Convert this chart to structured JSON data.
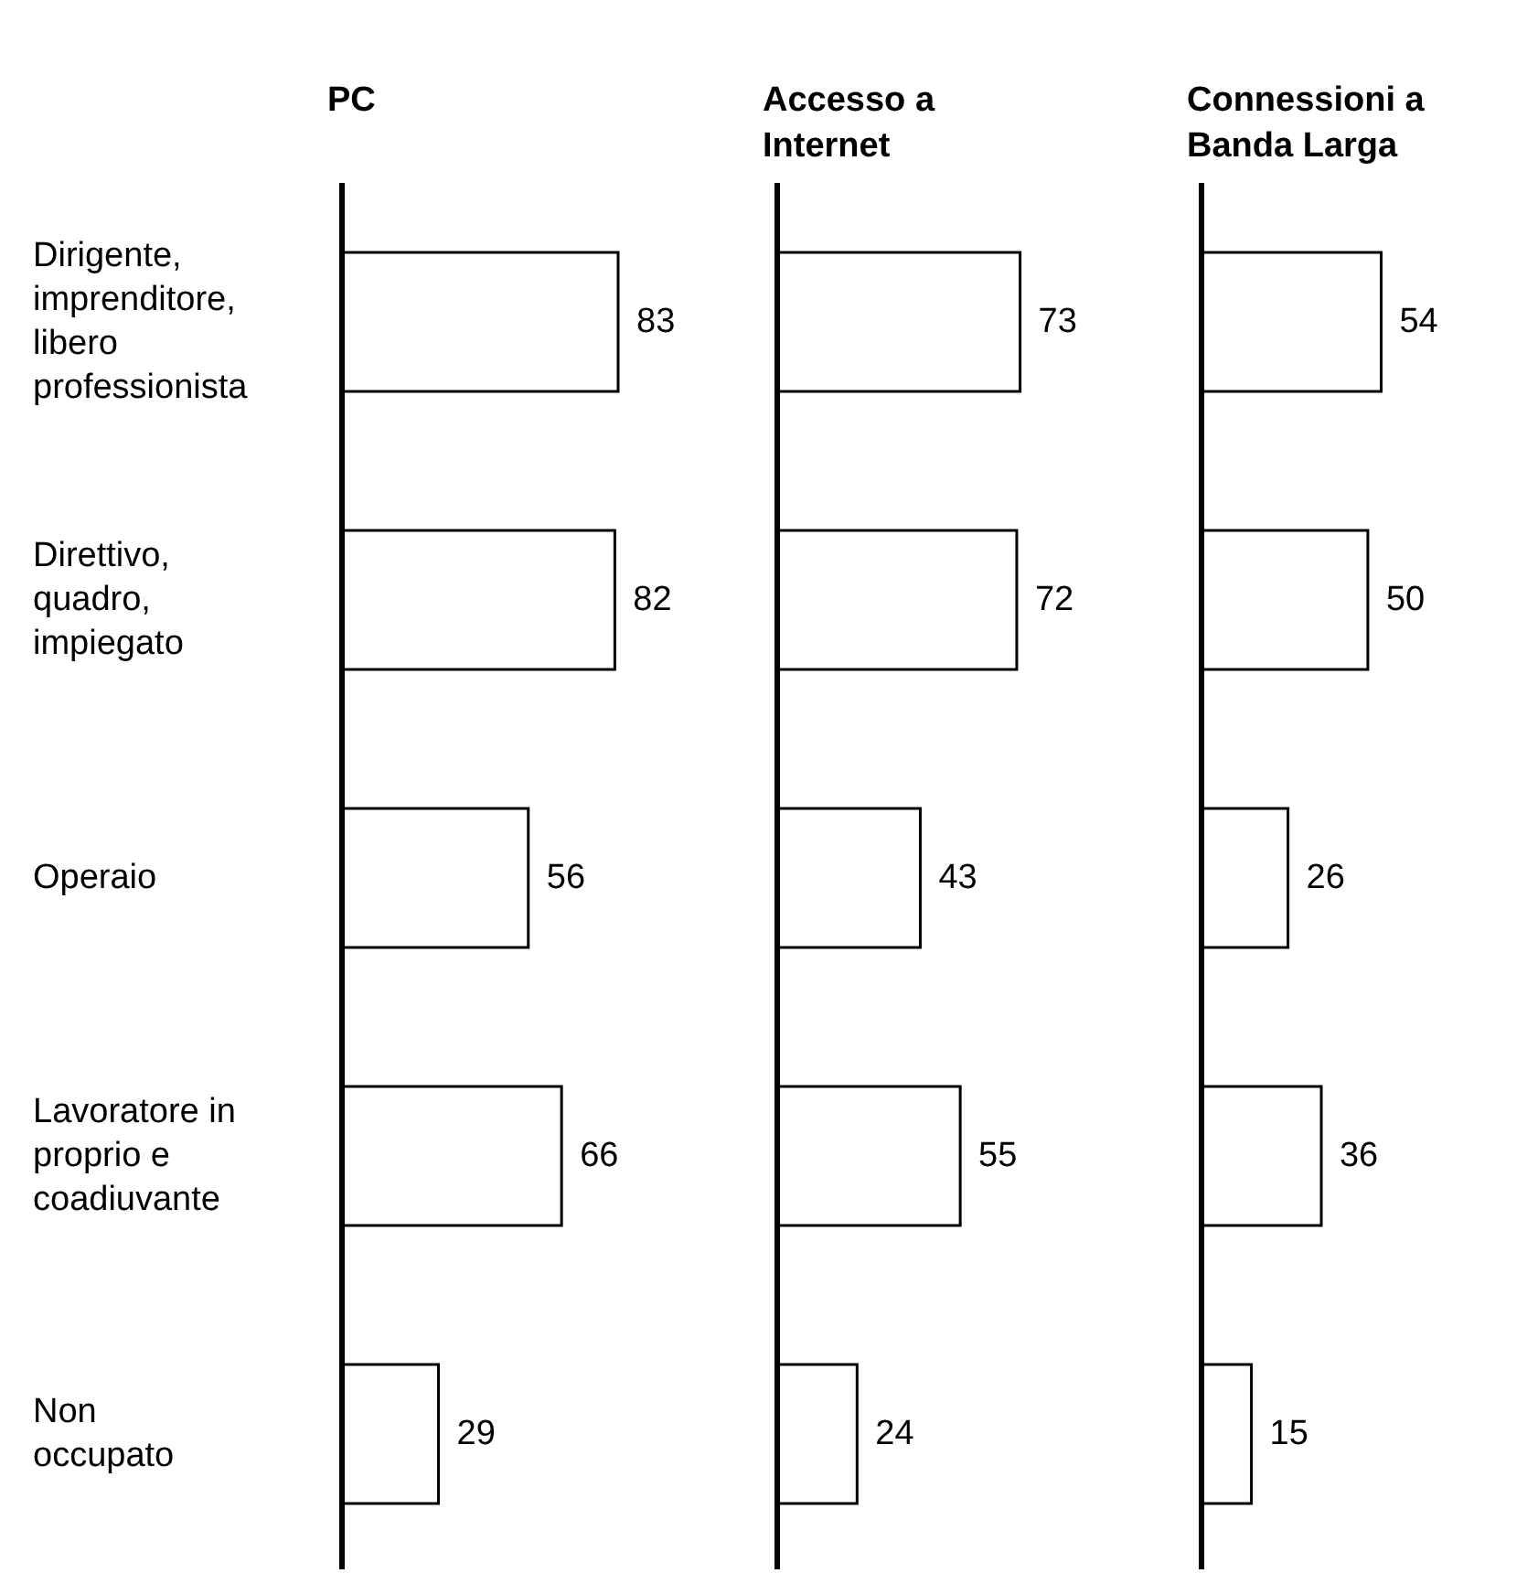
{
  "chart_data": [
    {
      "type": "bar",
      "orientation": "horizontal",
      "title": "PC",
      "categories": [
        "Dirigente,\nimprenditore,\nlibero\nprofessionista",
        "Direttivo,\nquadro,\nimpiegato",
        "Operaio",
        "Lavoratore in\nproprio e\ncoadiuvante",
        "Non\noccupato"
      ],
      "values": [
        83,
        82,
        56,
        66,
        29
      ],
      "color": "#ffffff",
      "data_labels": true,
      "tick_labels": "y"
    },
    {
      "type": "bar",
      "orientation": "horizontal",
      "title": "Accesso a\nInternet",
      "values": [
        73,
        72,
        43,
        55,
        24
      ],
      "color": "#ffffff",
      "data_labels": true,
      "tick_labels": false
    },
    {
      "type": "bar",
      "orientation": "horizontal",
      "title": "Connessioni a\nBanda Larga",
      "values": [
        54,
        50,
        26,
        36,
        15
      ],
      "color": "#ffffff",
      "data_labels": true,
      "tick_labels": false
    }
  ]
}
